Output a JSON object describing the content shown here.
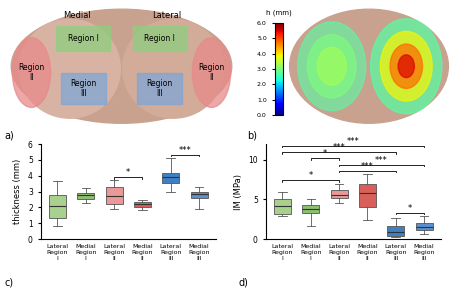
{
  "diagram": {
    "panel_label": "a)",
    "medial": "Medial",
    "lateral": "Lateral",
    "regions": [
      "Region I",
      "Region II",
      "Region III"
    ]
  },
  "height_map": {
    "panel_label": "b)",
    "colorbar": {
      "label": "h (mm)",
      "range": [
        0,
        6
      ],
      "ticks": [
        {
          "value": 0,
          "label": "0.0"
        },
        {
          "value": 1,
          "label": "1.0"
        },
        {
          "value": 2,
          "label": "2.0"
        },
        {
          "value": 3,
          "label": "3.0"
        },
        {
          "value": 4,
          "label": "4.0"
        },
        {
          "value": 5,
          "label": "5.0"
        },
        {
          "value": 6,
          "label": "6.0"
        }
      ]
    }
  },
  "chart_data": [
    {
      "type": "box",
      "title": "c)",
      "y_label": "thickness (mm)",
      "categories": [
        "Lateral Region I",
        "Medial Region I",
        "Lateral Region II",
        "Medial Region II",
        "Lateral Region III",
        "Medial Region III"
      ],
      "colors": [
        "#a9d18e",
        "#8dbf73",
        "#ea9999",
        "#d9605a",
        "#3f7fc4",
        "#5b8fcf"
      ],
      "boxes": [
        {
          "whislo": 0.8,
          "q1": 1.3,
          "med": 2.1,
          "q3": 2.8,
          "whishi": 3.65
        },
        {
          "whislo": 2.3,
          "q1": 2.55,
          "med": 2.75,
          "q3": 2.9,
          "whishi": 3.2
        },
        {
          "whislo": 1.9,
          "q1": 2.2,
          "med": 2.7,
          "q3": 3.3,
          "whishi": 3.7
        },
        {
          "whislo": 1.85,
          "q1": 2.05,
          "med": 2.2,
          "q3": 2.35,
          "whishi": 2.45
        },
        {
          "whislo": 3.0,
          "q1": 3.55,
          "med": 3.9,
          "q3": 4.15,
          "whishi": 5.1
        },
        {
          "whislo": 1.9,
          "q1": 2.6,
          "med": 2.85,
          "q3": 3.0,
          "whishi": 3.3
        }
      ],
      "comparisons": [
        {
          "from": "Lateral Region II",
          "to": "Medial Region II",
          "label": "*"
        },
        {
          "from": "Lateral Region III",
          "to": "Medial Region III",
          "label": "***"
        }
      ],
      "ylim": [
        0,
        6
      ],
      "yticks": [
        0,
        1,
        2,
        3,
        4,
        5,
        6
      ]
    },
    {
      "type": "box",
      "title": "d)",
      "y_label": "IM (MPa)",
      "categories": [
        "Lateral Region I",
        "Medial Region I",
        "Lateral Region II",
        "Medial Region II",
        "Lateral Region III",
        "Medial Region III"
      ],
      "colors": [
        "#a9d18e",
        "#8dbf73",
        "#ea9999",
        "#d9605a",
        "#3f7fc4",
        "#5b8fcf"
      ],
      "boxes": [
        {
          "whislo": 2.9,
          "q1": 3.2,
          "med": 4.2,
          "q3": 5.0,
          "whishi": 6.0
        },
        {
          "whislo": 1.7,
          "q1": 3.3,
          "med": 3.8,
          "q3": 4.3,
          "whishi": 5.0
        },
        {
          "whislo": 4.6,
          "q1": 5.2,
          "med": 5.6,
          "q3": 6.2,
          "whishi": 7.0
        },
        {
          "whislo": 2.4,
          "q1": 4.0,
          "med": 5.8,
          "q3": 7.0,
          "whishi": 8.2
        },
        {
          "whislo": 0.2,
          "q1": 0.4,
          "med": 0.9,
          "q3": 1.7,
          "whishi": 2.6
        },
        {
          "whislo": 0.6,
          "q1": 1.1,
          "med": 1.5,
          "q3": 2.0,
          "whishi": 2.9
        }
      ],
      "comparisons": [
        {
          "from": "Lateral Region III",
          "to": "Medial Region III",
          "label": "*"
        },
        {
          "from": "Lateral Region I",
          "to": "Lateral Region II",
          "label": "*"
        },
        {
          "from": "Lateral Region II",
          "to": "Lateral Region III",
          "label": "***"
        },
        {
          "from": "Lateral Region II",
          "to": "Medial Region III",
          "label": "***"
        },
        {
          "from": "Medial Region I",
          "to": "Lateral Region II",
          "label": "*"
        },
        {
          "from": "Lateral Region I",
          "to": "Lateral Region III",
          "label": "***"
        },
        {
          "from": "Lateral Region I",
          "to": "Medial Region III",
          "label": "***"
        }
      ],
      "ylim": [
        0,
        12
      ],
      "yticks": [
        0,
        5,
        10
      ]
    }
  ]
}
